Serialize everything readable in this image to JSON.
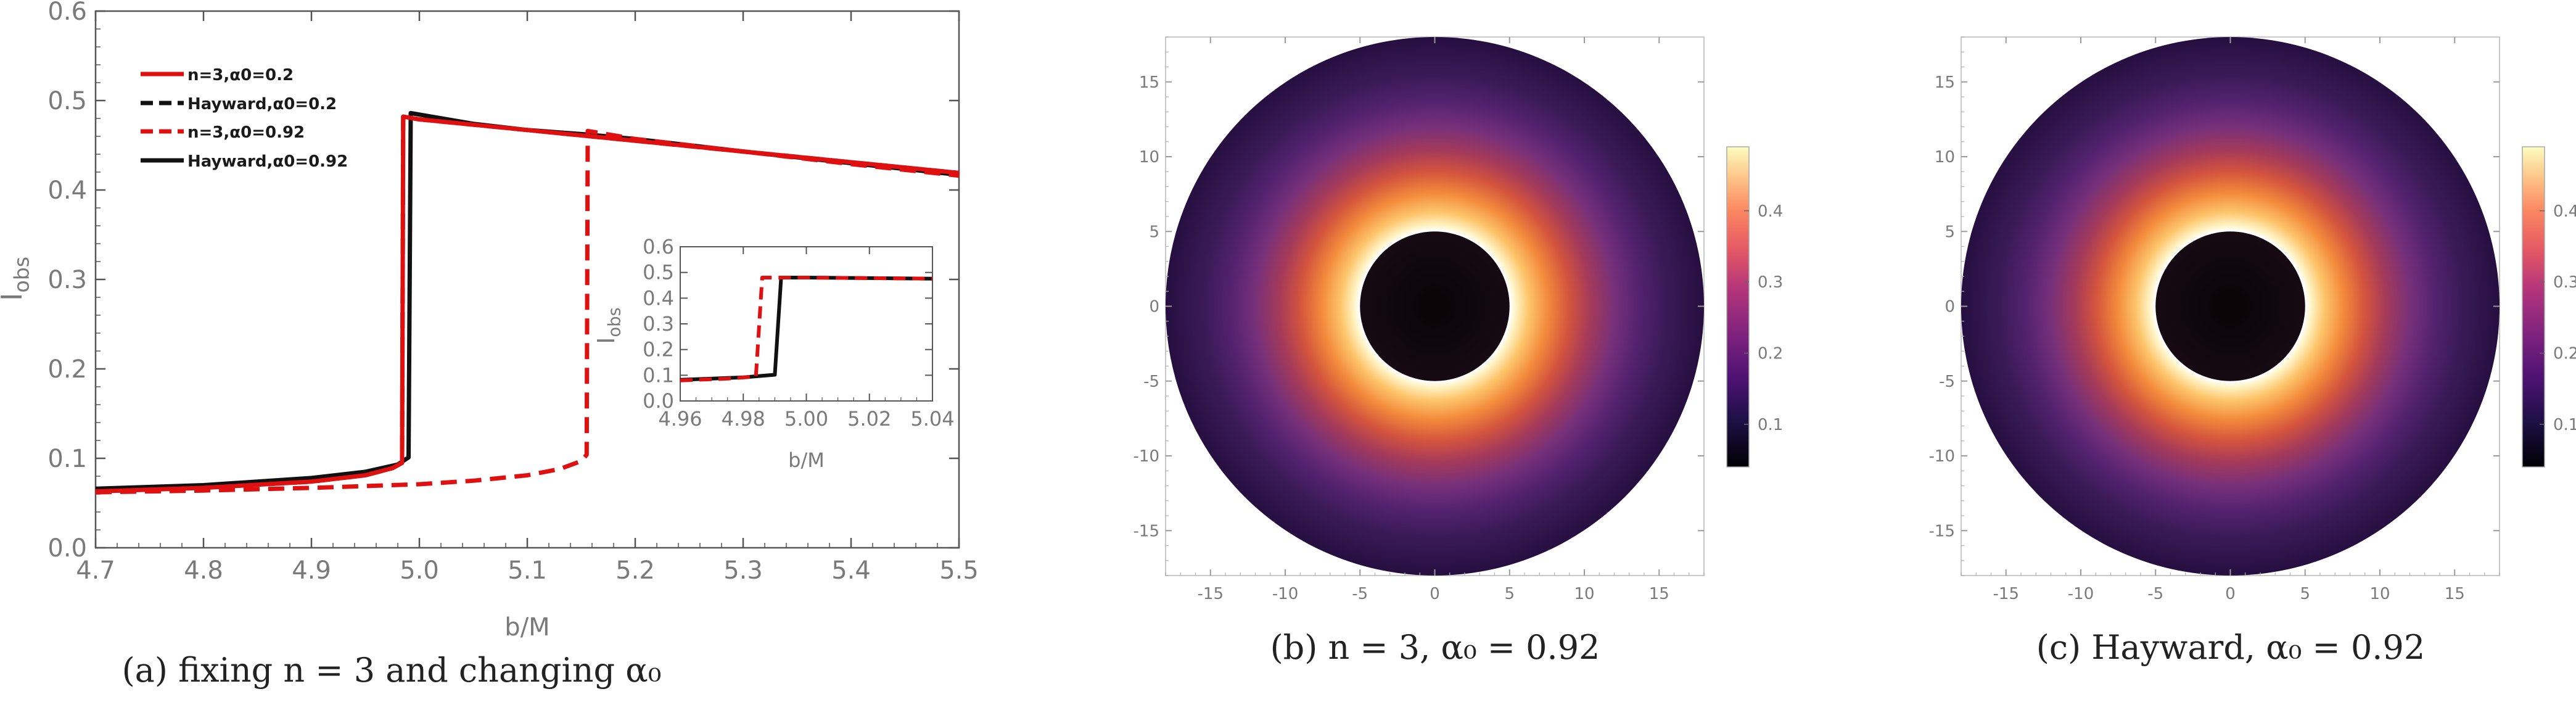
{
  "captions": {
    "a": "(a) fixing n = 3 and changing α₀",
    "b": "(b) n = 3, α₀ = 0.92",
    "c": "(c) Hayward, α₀ = 0.92"
  },
  "chart_data": [
    {
      "type": "line",
      "xlabel": "b/M",
      "ylabel": "I_obs",
      "xlim": [
        4.7,
        5.5
      ],
      "ylim": [
        0,
        0.6
      ],
      "x_ticks": [
        "4.7",
        "4.8",
        "4.9",
        "5.0",
        "5.1",
        "5.2",
        "5.3",
        "5.4",
        "5.5"
      ],
      "y_ticks": [
        "0.0",
        "0.1",
        "0.2",
        "0.3",
        "0.4",
        "0.5",
        "0.6"
      ],
      "grid": false,
      "legend_position": "top-left",
      "series": [
        {
          "name": "n=3,α0=0.2",
          "color": "#e01010",
          "dash": "solid",
          "points": [
            [
              4.7,
              0.063
            ],
            [
              4.8,
              0.067
            ],
            [
              4.9,
              0.074
            ],
            [
              4.95,
              0.081
            ],
            [
              4.975,
              0.089
            ],
            [
              4.984,
              0.095
            ],
            [
              4.985,
              0.482
            ],
            [
              5.0,
              0.479
            ],
            [
              5.1,
              0.467
            ],
            [
              5.2,
              0.455
            ],
            [
              5.3,
              0.443
            ],
            [
              5.4,
              0.431
            ],
            [
              5.5,
              0.419
            ]
          ]
        },
        {
          "name": "Hayward,α0=0.2",
          "color": "#111111",
          "dash": "dashed",
          "points": [
            [
              4.7,
              0.063
            ],
            [
              4.8,
              0.067
            ],
            [
              4.9,
              0.074
            ],
            [
              4.95,
              0.081
            ],
            [
              4.975,
              0.089
            ],
            [
              4.984,
              0.095
            ],
            [
              4.985,
              0.482
            ],
            [
              5.0,
              0.479
            ],
            [
              5.1,
              0.467
            ],
            [
              5.2,
              0.455
            ],
            [
              5.3,
              0.443
            ],
            [
              5.4,
              0.431
            ],
            [
              5.5,
              0.419
            ]
          ]
        },
        {
          "name": "n=3,α0=0.92",
          "color": "#e01010",
          "dash": "dashed",
          "points": [
            [
              4.7,
              0.062
            ],
            [
              4.8,
              0.064
            ],
            [
              4.9,
              0.067
            ],
            [
              5.0,
              0.071
            ],
            [
              5.05,
              0.075
            ],
            [
              5.1,
              0.081
            ],
            [
              5.13,
              0.088
            ],
            [
              5.15,
              0.097
            ],
            [
              5.155,
              0.104
            ],
            [
              5.156,
              0.466
            ],
            [
              5.2,
              0.457
            ],
            [
              5.3,
              0.443
            ],
            [
              5.4,
              0.429
            ],
            [
              5.5,
              0.416
            ]
          ]
        },
        {
          "name": "Hayward,α0=0.92",
          "color": "#111111",
          "dash": "solid",
          "points": [
            [
              4.7,
              0.066
            ],
            [
              4.8,
              0.07
            ],
            [
              4.9,
              0.078
            ],
            [
              4.95,
              0.085
            ],
            [
              4.98,
              0.093
            ],
            [
              4.99,
              0.101
            ],
            [
              4.992,
              0.486
            ],
            [
              5.05,
              0.474
            ],
            [
              5.1,
              0.467
            ],
            [
              5.156,
              0.462
            ],
            [
              5.2,
              0.457
            ],
            [
              5.3,
              0.443
            ],
            [
              5.4,
              0.43
            ],
            [
              5.5,
              0.417
            ]
          ]
        }
      ]
    },
    {
      "type": "line",
      "role": "inset",
      "xlabel": "b/M",
      "ylabel": "I_obs",
      "xlim": [
        4.96,
        5.04
      ],
      "ylim": [
        0,
        0.6
      ],
      "x_ticks": [
        "4.96",
        "4.98",
        "5.00",
        "5.02",
        "5.04"
      ],
      "y_ticks": [
        "0.0",
        "0.1",
        "0.2",
        "0.3",
        "0.4",
        "0.5",
        "0.6"
      ],
      "series": [
        {
          "color": "#111111",
          "dash": "solid",
          "points": [
            [
              4.96,
              0.082
            ],
            [
              4.98,
              0.092
            ],
            [
              4.99,
              0.102
            ],
            [
              4.992,
              0.48
            ],
            [
              5.0,
              0.48
            ],
            [
              5.04,
              0.476
            ]
          ]
        },
        {
          "color": "#e01010",
          "dash": "dashed",
          "points": [
            [
              4.96,
              0.08
            ],
            [
              4.975,
              0.087
            ],
            [
              4.984,
              0.095
            ],
            [
              4.986,
              0.48
            ],
            [
              5.0,
              0.48
            ],
            [
              5.04,
              0.476
            ]
          ]
        }
      ]
    },
    {
      "type": "heatmap",
      "xlim": [
        -18,
        18
      ],
      "ylim": [
        -18,
        18
      ],
      "x_ticks": [
        "-15",
        "-10",
        "-5",
        "0",
        "5",
        "10",
        "15"
      ],
      "y_ticks": [
        "15",
        "10",
        "5",
        "0",
        "-5",
        "-10",
        "-15"
      ],
      "inner_radius": 5,
      "outer_radius": 18,
      "colorbar_ticks": [
        "0.1",
        "0.2",
        "0.3",
        "0.4"
      ],
      "colorbar_range": [
        0.04,
        0.49
      ]
    },
    {
      "type": "heatmap",
      "xlim": [
        -18,
        18
      ],
      "ylim": [
        -18,
        18
      ],
      "x_ticks": [
        "-15",
        "-10",
        "-5",
        "0",
        "5",
        "10",
        "15"
      ],
      "y_ticks": [
        "15",
        "10",
        "5",
        "0",
        "-5",
        "-10",
        "-15"
      ],
      "inner_radius": 5,
      "outer_radius": 18,
      "colorbar_ticks": [
        "0.1",
        "0.2",
        "0.3",
        "0.4"
      ],
      "colorbar_range": [
        0.04,
        0.49
      ]
    }
  ]
}
